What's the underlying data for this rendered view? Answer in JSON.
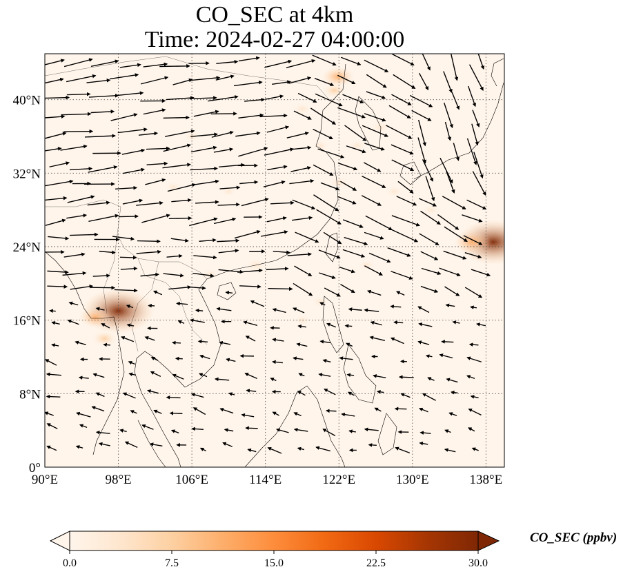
{
  "title": {
    "line1": "CO_SEC at 4km",
    "line2": "Time: 2024-02-27 04:00:00"
  },
  "map": {
    "lon_range": [
      90,
      140
    ],
    "lat_range": [
      0,
      45
    ],
    "lon_ticks": [
      {
        "value": 90,
        "label": "90°E"
      },
      {
        "value": 98,
        "label": "98°E"
      },
      {
        "value": 106,
        "label": "106°E"
      },
      {
        "value": 114,
        "label": "114°E"
      },
      {
        "value": 122,
        "label": "122°E"
      },
      {
        "value": 130,
        "label": "130°E"
      },
      {
        "value": 138,
        "label": "138°E"
      }
    ],
    "lat_ticks": [
      {
        "value": 0,
        "label": "0°"
      },
      {
        "value": 8,
        "label": "8°N"
      },
      {
        "value": 16,
        "label": "16°N"
      },
      {
        "value": 24,
        "label": "24°N"
      },
      {
        "value": 32,
        "label": "32°N"
      },
      {
        "value": 40,
        "label": "40°N"
      }
    ],
    "gridlines": true,
    "background_color": "#fff5eb",
    "hotspots": [
      {
        "lon": 98.0,
        "lat": 17.0,
        "value": 30
      },
      {
        "lon": 95.5,
        "lat": 16.3,
        "value": 10
      },
      {
        "lon": 96.5,
        "lat": 14.0,
        "value": 7
      },
      {
        "lon": 138.8,
        "lat": 24.5,
        "value": 30
      },
      {
        "lon": 136.5,
        "lat": 24.5,
        "value": 12
      },
      {
        "lon": 121.9,
        "lat": 42.5,
        "value": 10
      },
      {
        "lon": 121.5,
        "lat": 41.0,
        "value": 6
      },
      {
        "lon": 113.0,
        "lat": 22.0,
        "value": 5
      },
      {
        "lon": 118.0,
        "lat": 39.0,
        "value": 4
      },
      {
        "lon": 122.0,
        "lat": 31.0,
        "value": 4
      },
      {
        "lon": 124.0,
        "lat": 35.0,
        "value": 3
      },
      {
        "lon": 126.5,
        "lat": 37.0,
        "value": 4
      },
      {
        "lon": 120.0,
        "lat": 35.0,
        "value": 3
      },
      {
        "lon": 128.0,
        "lat": 30.0,
        "value": 3
      },
      {
        "lon": 132.0,
        "lat": 28.0,
        "value": 2.5
      },
      {
        "lon": 120.0,
        "lat": 18.0,
        "value": 3
      },
      {
        "lon": 118.0,
        "lat": 16.0,
        "value": 2
      },
      {
        "lon": 125.0,
        "lat": 22.0,
        "value": 3
      },
      {
        "lon": 106.0,
        "lat": 36.0,
        "value": 2
      },
      {
        "lon": 110.0,
        "lat": 30.0,
        "value": 2
      },
      {
        "lon": 104.0,
        "lat": 30.5,
        "value": 2.5
      },
      {
        "lon": 108.0,
        "lat": 21.0,
        "value": 2
      },
      {
        "lon": 116.0,
        "lat": 11.0,
        "value": 1.5
      },
      {
        "lon": 130.0,
        "lat": 17.0,
        "value": 1.5
      },
      {
        "lon": 103.0,
        "lat": 15.0,
        "value": 1.5
      },
      {
        "lon": 100.0,
        "lat": 5.0,
        "value": 1.5
      }
    ]
  },
  "colorbar": {
    "min": 0,
    "max": 30,
    "ticks": [
      "0.0",
      "7.5",
      "15.0",
      "22.5",
      "30.0"
    ],
    "label": "CO_SEC (ppbv)",
    "colors": [
      "#fff5eb",
      "#fee6ce",
      "#fdd0a2",
      "#fdae6b",
      "#fd8d3c",
      "#f16913",
      "#d94801",
      "#a63603",
      "#7f2704"
    ]
  }
}
